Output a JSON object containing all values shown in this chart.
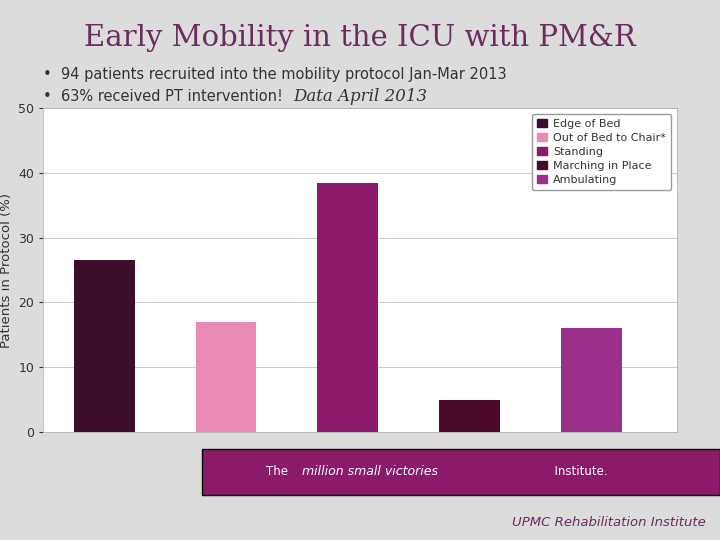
{
  "title": "Early Mobility in the ICU with PM&R",
  "title_color": "#6b2c5e",
  "bullet1": "94 patients recruited into the mobility protocol Jan-Mar 2013",
  "bullet2": "63% received PT intervention!",
  "chart_title": "Data April 2013",
  "categories": [
    "Edge of Bed",
    "Out of Bed to Chair*",
    "Standing",
    "Marching in Place",
    "Ambulating"
  ],
  "values": [
    26.5,
    17.0,
    38.5,
    5.0,
    16.0
  ],
  "bar_colors": [
    "#3d0d2b",
    "#e88ab4",
    "#8b1a6b",
    "#4a0a28",
    "#9c2f8a"
  ],
  "ylabel": "Patients in Protocol (%)",
  "ylim": [
    0,
    50
  ],
  "yticks": [
    0,
    10,
    20,
    30,
    40,
    50
  ],
  "background_color": "#dcdcdc",
  "chart_bg": "#ffffff",
  "footer_bg": "#8b1a6b",
  "footer_text_color": "#ffffff",
  "bottom_text_color": "#6b2c5e",
  "bullet_color": "#333333",
  "text_color": "#333333",
  "grid_color": "#cccccc"
}
